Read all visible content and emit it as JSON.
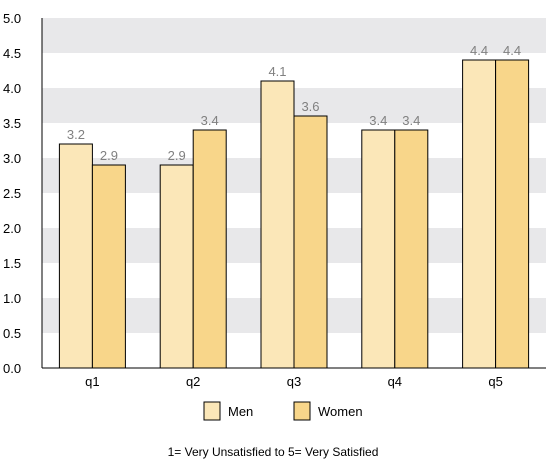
{
  "chart_data": {
    "type": "bar",
    "categories": [
      "q1",
      "q2",
      "q3",
      "q4",
      "q5"
    ],
    "series": [
      {
        "name": "Men",
        "values": [
          3.2,
          2.9,
          4.1,
          3.4,
          4.4
        ],
        "color": "#FBE7B8"
      },
      {
        "name": "Women",
        "values": [
          2.9,
          3.4,
          3.6,
          3.4,
          4.4
        ],
        "color": "#F8D68A"
      }
    ],
    "ylim": [
      0,
      5
    ],
    "yticks": [
      "0.0",
      "0.5",
      "1.0",
      "1.5",
      "2.0",
      "2.5",
      "3.0",
      "3.5",
      "4.0",
      "4.5",
      "5.0"
    ],
    "data_labels": [
      [
        "3.2",
        "2.9",
        "4.1",
        "3.4",
        "4.4"
      ],
      [
        "2.9",
        "3.4",
        "3.6",
        "3.4",
        "4.4"
      ]
    ],
    "grid": "alternating horizontal bands",
    "band_color": "#E8E8EA",
    "legend_position": "bottom-center",
    "caption": "1= Very Unsatisfied to 5= Very Satisfied"
  }
}
